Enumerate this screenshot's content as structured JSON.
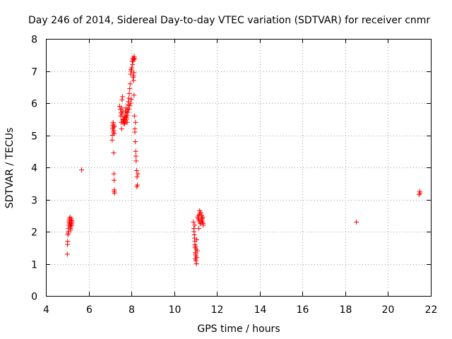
{
  "chart_data": {
    "type": "scatter",
    "title": "Day 246 of 2014, Sidereal Day-to-day VTEC variation (SDTVAR) for receiver cnmr",
    "xlabel": "GPS time / hours",
    "ylabel": "SDTVAR / TECUs",
    "xlim": [
      4,
      22
    ],
    "ylim": [
      0,
      8
    ],
    "xticks": [
      4,
      6,
      8,
      10,
      12,
      14,
      16,
      18,
      20,
      22
    ],
    "yticks": [
      0,
      1,
      2,
      3,
      4,
      5,
      6,
      7,
      8
    ],
    "grid": true,
    "marker": "plus",
    "color": "#ff0000",
    "series": [
      {
        "name": "SDTVAR",
        "x": [
          5.0,
          5.01,
          5.02,
          5.03,
          5.04,
          5.05,
          5.06,
          5.07,
          5.08,
          5.09,
          5.1,
          5.11,
          5.12,
          5.13,
          5.14,
          5.15,
          5.16,
          5.17,
          5.18,
          5.19,
          5.2,
          5.21,
          5.22,
          5.13,
          5.15,
          5.17,
          5.19,
          5.21,
          5.67,
          7.1,
          7.11,
          7.12,
          7.13,
          7.14,
          7.15,
          7.16,
          7.17,
          7.18,
          7.19,
          7.2,
          7.21,
          7.15,
          7.17,
          7.19,
          7.2,
          7.21,
          7.45,
          7.48,
          7.5,
          7.52,
          7.54,
          7.56,
          7.58,
          7.6,
          7.62,
          7.64,
          7.66,
          7.68,
          7.7,
          7.72,
          7.74,
          7.76,
          7.78,
          7.8,
          7.82,
          7.84,
          7.86,
          7.88,
          7.9,
          7.92,
          7.94,
          7.96,
          7.98,
          8.0,
          8.02,
          8.04,
          8.06,
          8.08,
          8.1,
          8.12,
          8.14,
          8.16,
          7.52,
          7.56,
          7.6,
          7.64,
          7.68,
          7.72,
          7.76,
          7.8,
          7.84,
          7.88,
          7.92,
          7.96,
          8.0,
          7.55,
          7.6,
          7.65,
          7.7,
          7.75,
          8.05,
          8.07,
          8.09,
          8.11,
          8.13,
          8.15,
          8.12,
          8.1,
          8.08,
          8.16,
          8.18,
          8.2,
          8.22,
          8.24,
          8.26,
          8.28,
          8.19,
          8.21,
          8.25,
          8.3,
          10.9,
          10.92,
          10.94,
          10.96,
          10.98,
          11.0,
          11.02,
          11.04,
          11.06,
          11.08,
          10.93,
          10.95,
          10.97,
          10.99,
          11.01,
          11.03,
          11.05,
          10.96,
          10.98,
          11.0,
          11.1,
          11.12,
          11.14,
          11.16,
          11.18,
          11.2,
          11.22,
          11.24,
          11.26,
          11.28,
          11.3,
          11.32,
          11.34,
          11.36,
          11.15,
          11.19,
          11.23,
          11.27,
          11.31,
          11.35,
          18.52,
          21.45,
          21.48,
          21.5
        ],
        "y": [
          1.3,
          1.6,
          1.7,
          1.9,
          1.95,
          2.0,
          2.1,
          2.2,
          2.3,
          2.35,
          2.4,
          2.25,
          2.15,
          2.3,
          2.2,
          2.1,
          2.05,
          2.35,
          2.25,
          2.4,
          2.3,
          2.2,
          2.3,
          2.45,
          2.15,
          2.2,
          2.25,
          2.35,
          3.92,
          4.85,
          5.0,
          5.2,
          5.3,
          5.4,
          5.25,
          5.1,
          4.45,
          3.8,
          3.6,
          3.3,
          3.2,
          5.35,
          5.15,
          3.25,
          5.05,
          5.28,
          5.9,
          5.8,
          5.6,
          5.4,
          5.2,
          6.1,
          6.2,
          5.5,
          5.45,
          5.4,
          5.35,
          5.55,
          5.6,
          5.75,
          5.85,
          5.7,
          5.5,
          5.4,
          5.8,
          5.95,
          6.05,
          6.15,
          6.3,
          6.45,
          6.6,
          6.9,
          7.05,
          7.0,
          7.1,
          7.3,
          7.4,
          7.35,
          6.7,
          6.25,
          5.6,
          5.2,
          5.7,
          5.65,
          5.48,
          5.42,
          5.38,
          5.45,
          5.55,
          5.62,
          5.72,
          5.82,
          5.92,
          6.0,
          6.12,
          5.85,
          5.75,
          5.5,
          5.45,
          5.58,
          7.2,
          7.3,
          7.35,
          7.4,
          7.45,
          7.38,
          6.95,
          6.85,
          6.8,
          5.1,
          4.8,
          4.5,
          4.2,
          3.9,
          3.7,
          3.45,
          5.4,
          4.35,
          3.4,
          3.8,
          2.3,
          2.1,
          1.9,
          1.7,
          1.5,
          1.3,
          1.1,
          1.0,
          1.2,
          1.4,
          2.0,
          1.8,
          1.6,
          1.35,
          1.25,
          1.45,
          1.75,
          2.2,
          1.15,
          1.55,
          2.45,
          2.4,
          2.5,
          2.35,
          2.55,
          2.3,
          2.25,
          2.6,
          2.4,
          2.5,
          2.35,
          2.3,
          2.45,
          2.2,
          2.1,
          2.65,
          2.55,
          2.3,
          2.4,
          2.25,
          2.3,
          3.15,
          3.25,
          3.2
        ]
      }
    ]
  }
}
